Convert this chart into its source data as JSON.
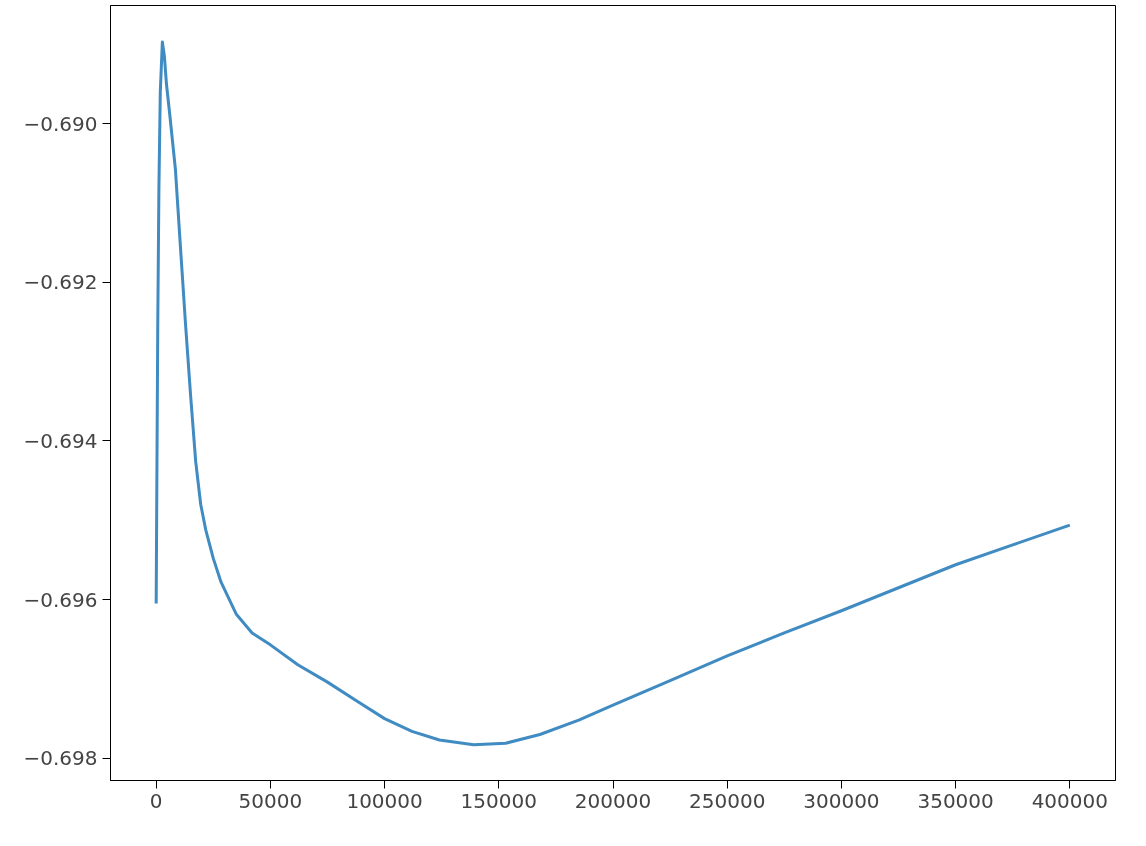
{
  "chart_data": {
    "type": "line",
    "xlim": [
      -20000,
      420000
    ],
    "ylim": [
      -0.69828,
      -0.68851
    ],
    "xticks": [
      0,
      50000,
      100000,
      150000,
      200000,
      250000,
      300000,
      350000,
      400000
    ],
    "yticks": [
      {
        "value": -0.69,
        "label": "−0.690"
      },
      {
        "value": -0.692,
        "label": "−0.692"
      },
      {
        "value": -0.694,
        "label": "−0.694"
      },
      {
        "value": -0.696,
        "label": "−0.696"
      },
      {
        "value": -0.698,
        "label": "−0.698"
      }
    ],
    "grid": false,
    "series": [
      {
        "color": "#3f8bc2",
        "x": [
          0,
          300,
          700,
          1200,
          1800,
          2700,
          3600,
          4500,
          6000,
          8400,
          10500,
          12900,
          15000,
          17300,
          19500,
          21700,
          25000,
          28400,
          35000,
          42000,
          50000,
          62000,
          75000,
          88000,
          100000,
          112000,
          124000,
          139000,
          153000,
          168000,
          185000,
          200000,
          225000,
          250000,
          275000,
          300000,
          325000,
          350000,
          375000,
          400000
        ],
        "values": [
          -0.69605,
          -0.6945,
          -0.6925,
          -0.6908,
          -0.6896,
          -0.68897,
          -0.68915,
          -0.6895,
          -0.6899,
          -0.69057,
          -0.6915,
          -0.69255,
          -0.6934,
          -0.69426,
          -0.6948,
          -0.69512,
          -0.69548,
          -0.69578,
          -0.69618,
          -0.69642,
          -0.69657,
          -0.69682,
          -0.69704,
          -0.69728,
          -0.6975,
          -0.69766,
          -0.69777,
          -0.69783,
          -0.69781,
          -0.6977,
          -0.69752,
          -0.69733,
          -0.69702,
          -0.69671,
          -0.69642,
          -0.69614,
          -0.69585,
          -0.69556,
          -0.69531,
          -0.69506
        ]
      }
    ]
  }
}
